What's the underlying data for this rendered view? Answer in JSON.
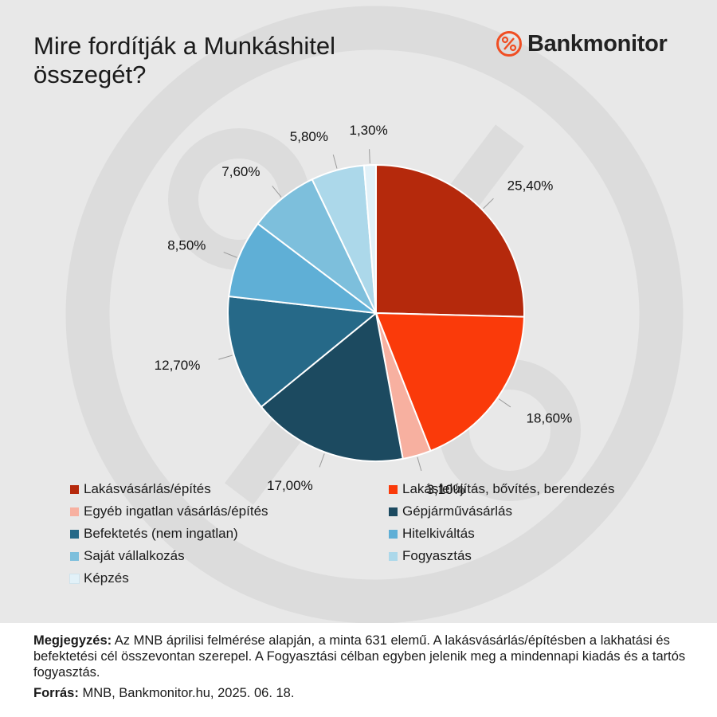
{
  "title": "Mire fordítják a Munkáshitel összegét?",
  "logo": {
    "text": "Bankmonitor",
    "icon": "percent-circle-icon",
    "color": "#f04e23"
  },
  "chart_data": {
    "type": "pie",
    "title": "Mire fordítják a Munkáshitel összegét?",
    "slices": [
      {
        "name": "Lakásvásárlás/építés",
        "value": 25.4,
        "label": "25,40%",
        "color": "#b5290c"
      },
      {
        "name": "Lakásfelújítás, bővítés, berendezés",
        "value": 18.6,
        "label": "18,60%",
        "color": "#fa3a0a"
      },
      {
        "name": "Egyéb  ingatlan vásárlás/építés",
        "value": 3.1,
        "label": "3,10%",
        "color": "#f7b0a0"
      },
      {
        "name": "Gépjárművásárlás",
        "value": 17.0,
        "label": "17,00%",
        "color": "#1c4a60"
      },
      {
        "name": "Befektetés (nem ingatlan)",
        "value": 12.7,
        "label": "12,70%",
        "color": "#266988"
      },
      {
        "name": "Hitelkiváltás",
        "value": 8.5,
        "label": "8,50%",
        "color": "#5fafd6"
      },
      {
        "name": "Saját vállalkozás",
        "value": 7.6,
        "label": "7,60%",
        "color": "#7dbfdc"
      },
      {
        "name": "Fogyasztás",
        "value": 5.8,
        "label": "5,80%",
        "color": "#acd8ea"
      },
      {
        "name": "Képzés",
        "value": 1.3,
        "label": "1,30%",
        "color": "#e2f1f8"
      }
    ],
    "legend_position": "bottom"
  },
  "footer": {
    "note_label": "Megjegyzés:",
    "note_text": " Az MNB áprilisi felmérése alapján, a minta 631 elemű. A lakásvásárlás/építésben a lakhatási és befektetési cél összevontan szerepel. A Fogyasztási célban egyben jelenik meg a mindennapi kiadás és a tartós fogyasztás.",
    "source_label": "Forrás:",
    "source_text": " MNB, Bankmonitor.hu, 2025. 06. 18."
  }
}
